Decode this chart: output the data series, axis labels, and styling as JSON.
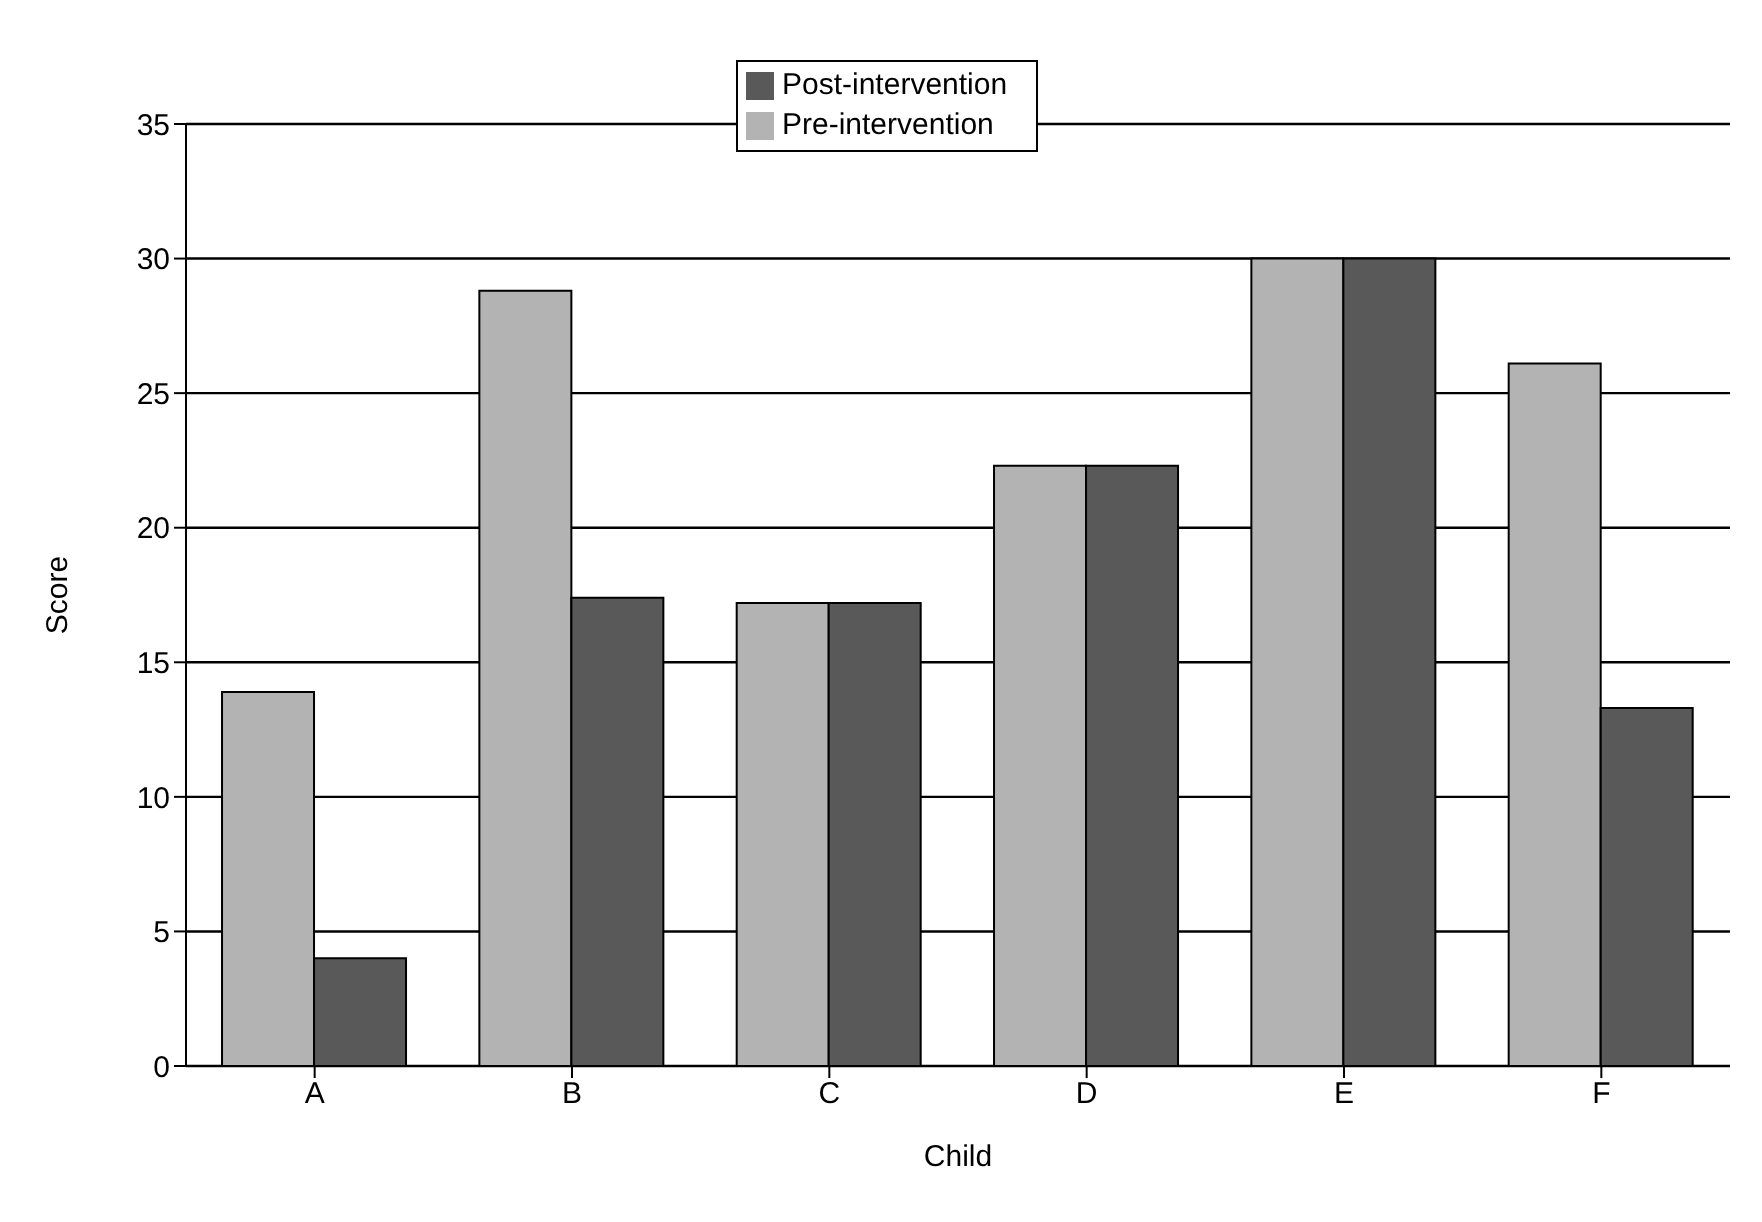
{
  "chart_data": {
    "type": "bar",
    "xlabel": "Child",
    "ylabel": "Score",
    "categories": [
      "A",
      "B",
      "C",
      "D",
      "E",
      "F"
    ],
    "series": [
      {
        "name": "Pre-intervention",
        "color": "#b3b3b3",
        "values": [
          13.9,
          28.8,
          17.2,
          22.3,
          30.0,
          26.1
        ]
      },
      {
        "name": "Post-intervention",
        "color": "#595959",
        "values": [
          4.0,
          17.4,
          17.2,
          22.3,
          30.0,
          13.3
        ]
      }
    ],
    "ylim": [
      0,
      35
    ],
    "yticks": [
      0,
      5,
      10,
      15,
      20,
      25,
      30,
      35
    ],
    "grid": "y",
    "legend": "top"
  }
}
